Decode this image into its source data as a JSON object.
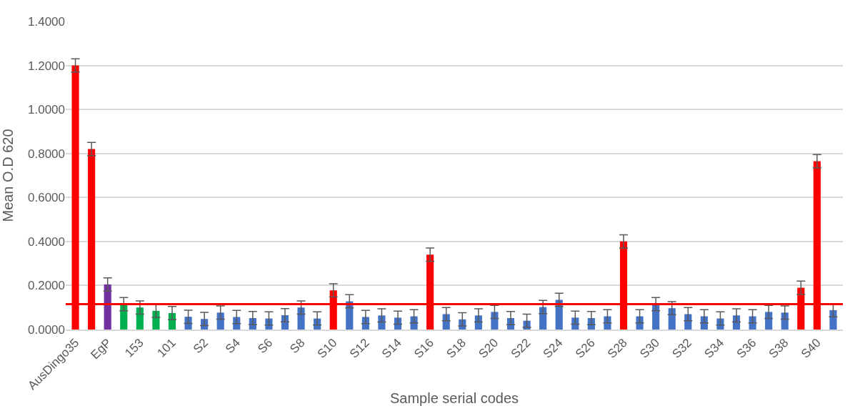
{
  "chart_data": {
    "type": "bar",
    "xlabel": "Sample serial codes",
    "ylabel": "Mean O.D 620",
    "categories": [
      "AusDingo35",
      null,
      "EgP",
      null,
      "153",
      null,
      "101",
      null,
      "S2",
      null,
      "S4",
      null,
      "S6",
      null,
      "S8",
      null,
      "S10",
      null,
      "S12",
      null,
      "S14",
      null,
      "S16",
      null,
      "S18",
      null,
      "S20",
      null,
      "S22",
      null,
      "S24",
      null,
      "S26",
      null,
      "S28",
      null,
      "S30",
      null,
      "S32",
      null,
      "S34",
      null,
      "S36",
      null,
      "S38",
      null,
      "S40",
      null
    ],
    "values": [
      1.2,
      0.82,
      0.205,
      0.115,
      0.1,
      0.085,
      0.075,
      0.058,
      0.048,
      0.077,
      0.057,
      0.052,
      0.05,
      0.065,
      0.1,
      0.05,
      0.178,
      0.128,
      0.057,
      0.064,
      0.054,
      0.06,
      0.34,
      0.07,
      0.046,
      0.064,
      0.08,
      0.052,
      0.04,
      0.102,
      0.135,
      0.054,
      0.052,
      0.06,
      0.4,
      0.06,
      0.115,
      0.097,
      0.07,
      0.06,
      0.05,
      0.064,
      0.06,
      0.08,
      0.077,
      0.19,
      0.765,
      0.088
    ],
    "errors": [
      0.03,
      0.03,
      0.03,
      0.03,
      0.03,
      0.03,
      0.03,
      0.03,
      0.03,
      0.03,
      0.03,
      0.03,
      0.03,
      0.03,
      0.03,
      0.03,
      0.03,
      0.03,
      0.03,
      0.03,
      0.03,
      0.03,
      0.03,
      0.03,
      0.03,
      0.03,
      0.03,
      0.03,
      0.03,
      0.03,
      0.03,
      0.03,
      0.03,
      0.03,
      0.03,
      0.03,
      0.03,
      0.03,
      0.03,
      0.03,
      0.03,
      0.03,
      0.03,
      0.03,
      0.03,
      0.03,
      0.03,
      0.03
    ],
    "colors": [
      "#ff0000",
      "#ff0000",
      "#7030a0",
      "#00b050",
      "#00b050",
      "#00b050",
      "#00b050",
      "#4472c4",
      "#4472c4",
      "#4472c4",
      "#4472c4",
      "#4472c4",
      "#4472c4",
      "#4472c4",
      "#4472c4",
      "#4472c4",
      "#ff0000",
      "#4472c4",
      "#4472c4",
      "#4472c4",
      "#4472c4",
      "#4472c4",
      "#ff0000",
      "#4472c4",
      "#4472c4",
      "#4472c4",
      "#4472c4",
      "#4472c4",
      "#4472c4",
      "#4472c4",
      "#4472c4",
      "#4472c4",
      "#4472c4",
      "#4472c4",
      "#ff0000",
      "#4472c4",
      "#4472c4",
      "#4472c4",
      "#4472c4",
      "#4472c4",
      "#4472c4",
      "#4472c4",
      "#4472c4",
      "#4472c4",
      "#4472c4",
      "#ff0000",
      "#ff0000",
      "#4472c4"
    ],
    "ylim": [
      0,
      1.4
    ],
    "yticks": [
      {
        "value": 0,
        "label": "0.0000"
      },
      {
        "value": 0.2,
        "label": "0.2000"
      },
      {
        "value": 0.4,
        "label": "0.4000"
      },
      {
        "value": 0.6,
        "label": "0.6000"
      },
      {
        "value": 0.8,
        "label": "0.8000"
      },
      {
        "value": 1.0,
        "label": "1.0000"
      },
      {
        "value": 1.2,
        "label": "1.2000"
      },
      {
        "value": 1.4,
        "label": "1.4000"
      }
    ],
    "ref_lines": [
      {
        "axis": "y",
        "value": 0.115,
        "color": "#ff0000"
      }
    ],
    "grid": "y"
  }
}
